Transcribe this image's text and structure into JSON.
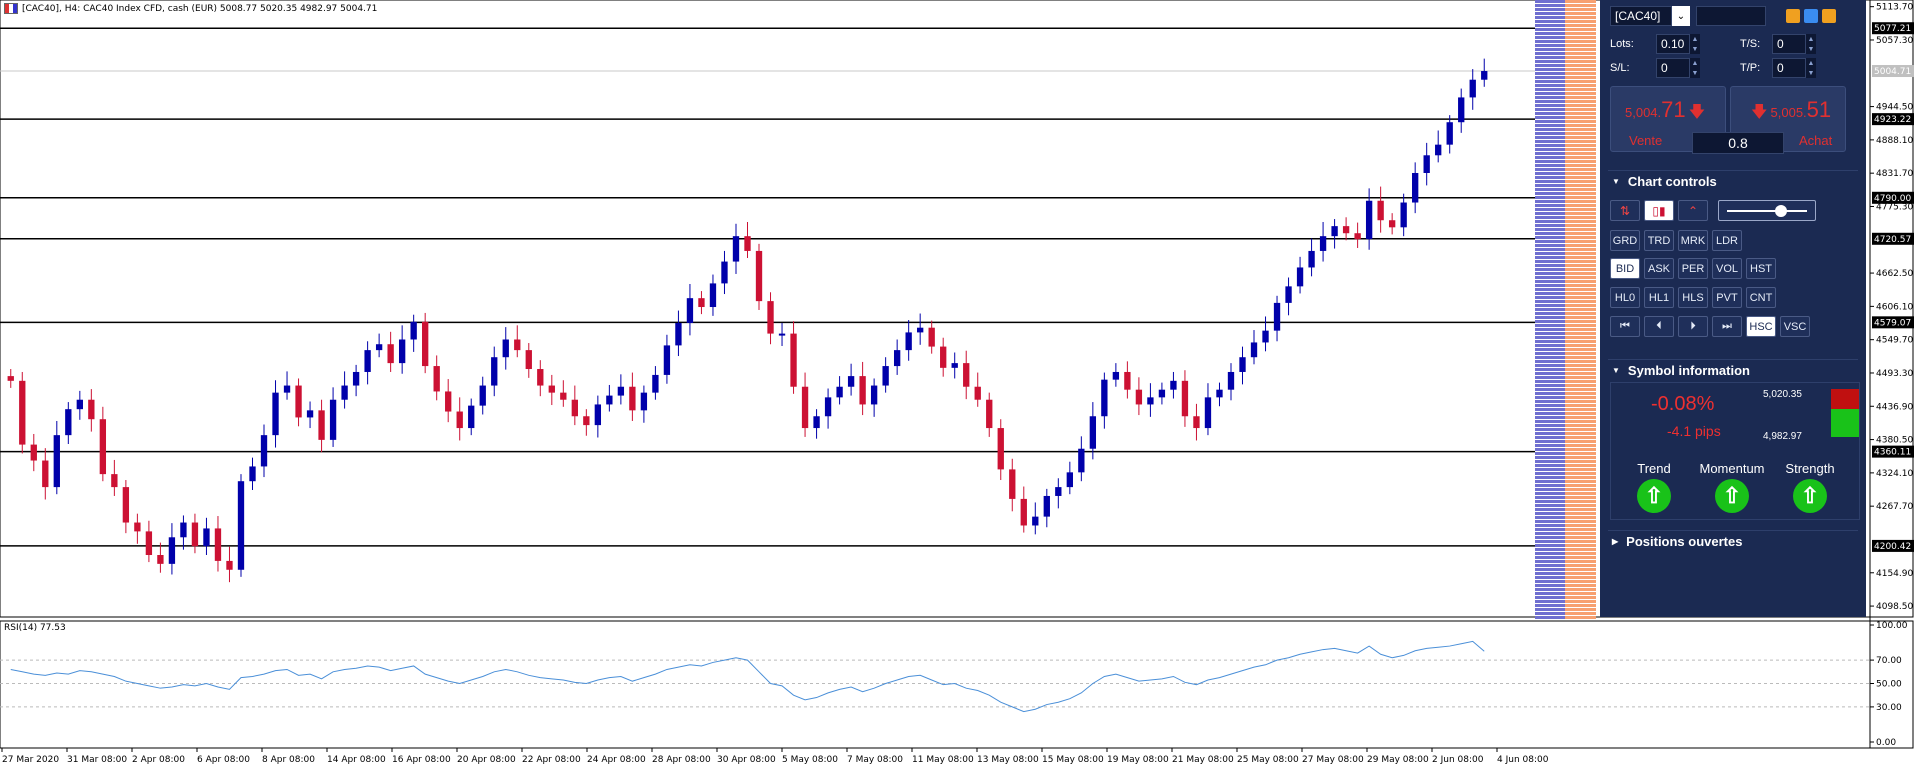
{
  "header": {
    "symbol_info": "[CAC40], H4:  CAC40 Index CFD, cash (EUR)  5008.77 5020.35 4982.97 5004.71"
  },
  "rsi": {
    "label": "RSI(14) 77.53",
    "ticks": [
      "100.00",
      "70.00",
      "50.00",
      "30.00",
      "0.00"
    ]
  },
  "price_axis": [
    "5113.70",
    "5057.30",
    "4944.50",
    "4888.10",
    "4831.70",
    "4775.30",
    "4662.50",
    "4606.10",
    "4549.70",
    "4493.30",
    "4436.90",
    "4380.50",
    "4324.10",
    "4267.70",
    "4154.90",
    "4098.50"
  ],
  "level_labels": [
    "5077.21",
    "5004.71",
    "4923.22",
    "4790.00",
    "4720.57",
    "4579.07",
    "4360.11",
    "4200.42"
  ],
  "time_axis": [
    "27 Mar 2020",
    "31 Mar 08:00",
    "2 Apr 08:00",
    "6 Apr 08:00",
    "8 Apr 08:00",
    "14 Apr 08:00",
    "16 Apr 08:00",
    "20 Apr 08:00",
    "22 Apr 08:00",
    "24 Apr 08:00",
    "28 Apr 08:00",
    "30 Apr 08:00",
    "5 May 08:00",
    "7 May 08:00",
    "11 May 08:00",
    "13 May 08:00",
    "15 May 08:00",
    "19 May 08:00",
    "21 May 08:00",
    "25 May 08:00",
    "27 May 08:00",
    "29 May 08:00",
    "2 Jun 08:00",
    "4 Jun 08:00"
  ],
  "chart_data": {
    "type": "candlestick",
    "price_range": [
      4080,
      5125
    ],
    "horizontal_levels": [
      5077.21,
      4923.22,
      4790.0,
      4720.57,
      4579.07,
      4360.11,
      4200.42
    ],
    "last_price": 5004.71,
    "closes": [
      4480,
      4372,
      4345,
      4300,
      4388,
      4432,
      4448,
      4415,
      4322,
      4300,
      4240,
      4225,
      4185,
      4170,
      4215,
      4240,
      4200,
      4230,
      4175,
      4160,
      4310,
      4335,
      4388,
      4460,
      4472,
      4418,
      4430,
      4380,
      4448,
      4472,
      4495,
      4532,
      4542,
      4510,
      4550,
      4580,
      4505,
      4462,
      4428,
      4400,
      4438,
      4472,
      4520,
      4550,
      4532,
      4500,
      4472,
      4460,
      4448,
      4420,
      4405,
      4440,
      4455,
      4470,
      4430,
      4460,
      4490,
      4540,
      4578,
      4620,
      4605,
      4645,
      4682,
      4725,
      4700,
      4615,
      4560,
      4560,
      4470,
      4400,
      4420,
      4452,
      4470,
      4488,
      4440,
      4472,
      4505,
      4532,
      4562,
      4570,
      4538,
      4502,
      4510,
      4470,
      4448,
      4400,
      4330,
      4280,
      4235,
      4250,
      4285,
      4300,
      4325,
      4365,
      4420,
      4482,
      4495,
      4465,
      4440,
      4452,
      4465,
      4480,
      4420,
      4400,
      4452,
      4465,
      4495,
      4520,
      4545,
      4565,
      4612,
      4640,
      4672,
      4700,
      4725,
      4742,
      4730,
      4720,
      4785,
      4752,
      4740,
      4782,
      4832,
      4862,
      4880,
      4918,
      4960,
      4990,
      5004.71
    ],
    "x_labels": [
      "27 Mar 2020",
      "31 Mar 08:00",
      "2 Apr 08:00",
      "6 Apr 08:00",
      "8 Apr 08:00",
      "14 Apr 08:00",
      "16 Apr 08:00",
      "20 Apr 08:00",
      "22 Apr 08:00",
      "24 Apr 08:00",
      "28 Apr 08:00",
      "30 Apr 08:00",
      "5 May 08:00",
      "7 May 08:00",
      "11 May 08:00",
      "13 May 08:00",
      "15 May 08:00",
      "19 May 08:00",
      "21 May 08:00",
      "25 May 08:00",
      "27 May 08:00",
      "29 May 08:00",
      "2 Jun 08:00",
      "4 Jun 08:00"
    ],
    "rsi_values": [
      62,
      60,
      58,
      57,
      59,
      58,
      61,
      60,
      58,
      56,
      52,
      50,
      48,
      46,
      47,
      49,
      48,
      50,
      47,
      45,
      55,
      56,
      58,
      61,
      62,
      57,
      58,
      54,
      60,
      62,
      63,
      65,
      64,
      61,
      63,
      65,
      58,
      55,
      52,
      50,
      53,
      56,
      60,
      62,
      60,
      57,
      55,
      54,
      53,
      51,
      50,
      53,
      55,
      56,
      52,
      55,
      58,
      62,
      64,
      66,
      65,
      68,
      70,
      72,
      70,
      60,
      50,
      48,
      40,
      36,
      38,
      42,
      45,
      47,
      43,
      46,
      50,
      53,
      56,
      57,
      53,
      49,
      50,
      46,
      44,
      40,
      34,
      30,
      26,
      28,
      32,
      34,
      37,
      42,
      50,
      56,
      58,
      55,
      52,
      53,
      54,
      56,
      51,
      49,
      53,
      55,
      58,
      61,
      64,
      66,
      70,
      72,
      75,
      77,
      79,
      80,
      78,
      76,
      82,
      75,
      72,
      74,
      78,
      80,
      81,
      82,
      84,
      86,
      77.53
    ],
    "rsi_range": [
      0,
      100
    ],
    "rsi_levels": [
      70,
      50,
      30
    ]
  },
  "panel": {
    "symbol": "[CAC40]",
    "lots_label": "Lots:",
    "lots_value": "0.10",
    "ts_label": "T/S:",
    "ts_value": "0",
    "sl_label": "S/L:",
    "sl_value": "0",
    "tp_label": "T/P:",
    "tp_value": "0",
    "sell_price_small": "5,004.",
    "sell_price_big": "71",
    "sell_label": "Vente",
    "buy_price_small": "5,005.",
    "buy_price_big": "51",
    "buy_label": "Achat",
    "spread": "0.8",
    "chart_controls_title": "Chart controls",
    "btn_row1": [
      "GRD",
      "TRD",
      "MRK",
      "LDR"
    ],
    "btn_row2": [
      "BID",
      "ASK",
      "PER",
      "VOL",
      "HST"
    ],
    "btn_row3": [
      "HL0",
      "HL1",
      "HLS",
      "PVT",
      "CNT"
    ],
    "btn_row4_extra": [
      "HSC",
      "VSC"
    ],
    "symbol_info_title": "Symbol information",
    "change_pct": "-0.08%",
    "change_pips": "-4.1 pips",
    "high": "5,020.35",
    "low": "4,982.97",
    "trend_label": "Trend",
    "momentum_label": "Momentum",
    "strength_label": "Strength",
    "positions_title": "Positions ouvertes",
    "colors": {
      "panel_bg": "#1b2a52",
      "sell_red": "#e03030",
      "up_green": "#19c219",
      "bull": "#0000aa",
      "bear": "#cc1133"
    }
  }
}
